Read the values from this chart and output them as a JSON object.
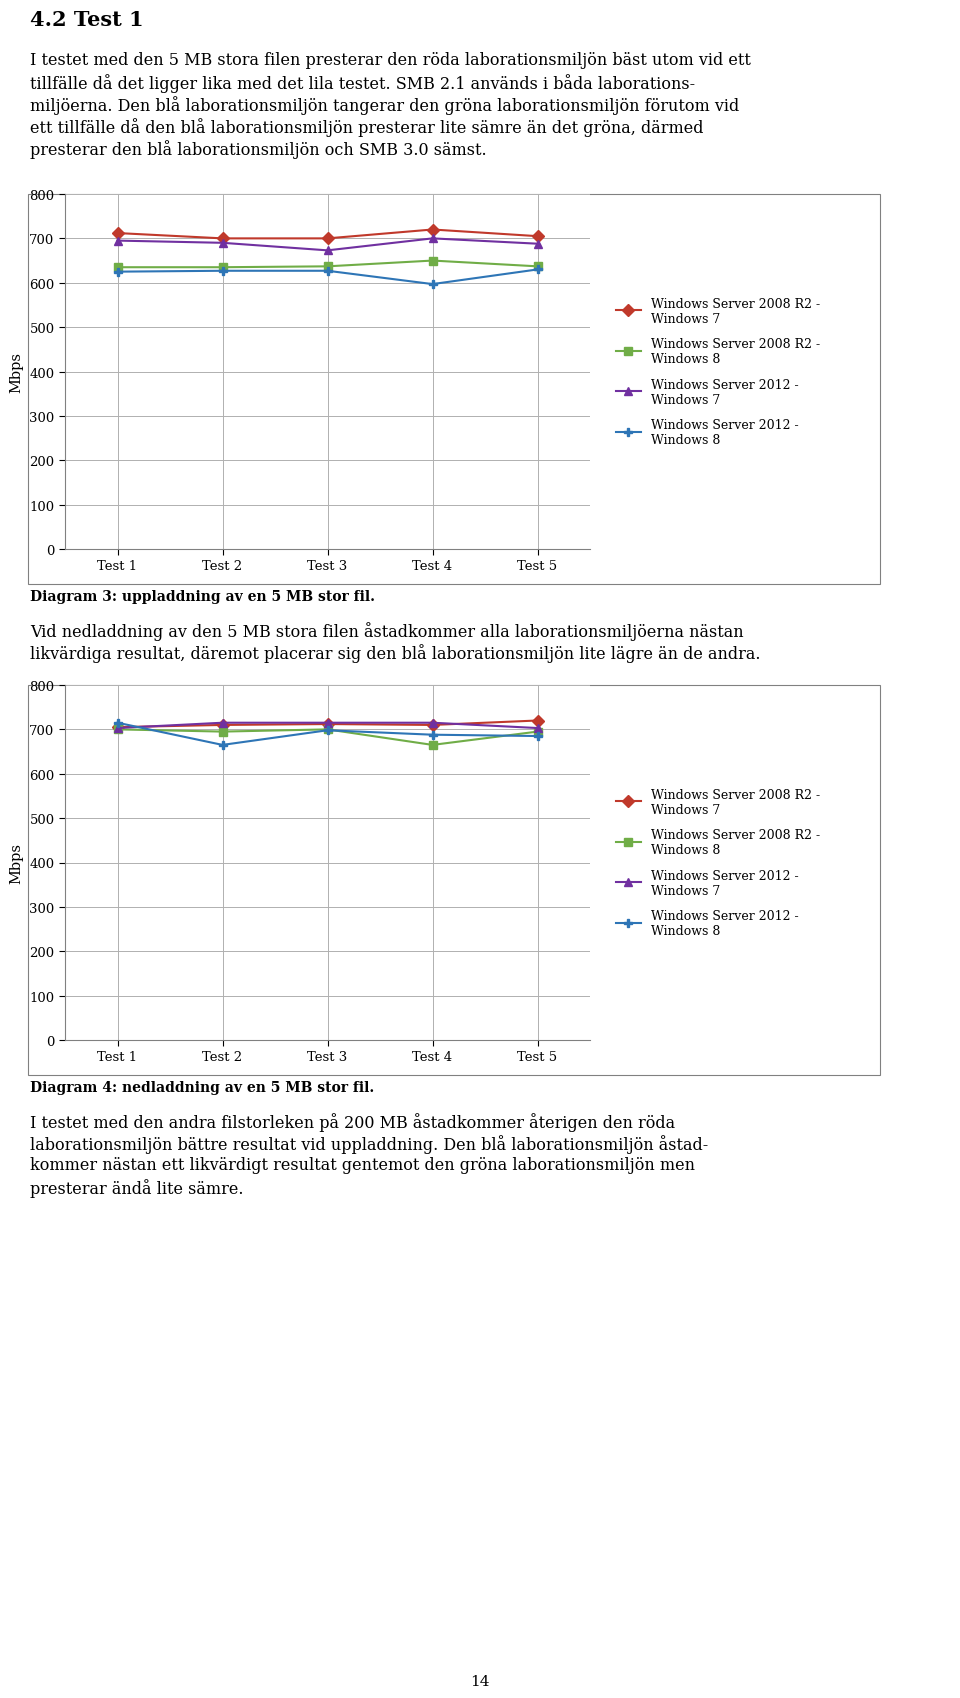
{
  "page_title": "4.2 Test 1",
  "intro_lines": [
    "I testet med den 5 MB stora filen presterar den röda laborationsmiljön bäst utom vid ett",
    "tillfälle då det ligger lika med det lila testet. SMB 2.1 används i båda laborations-",
    "miljöerna. Den blå laborationsmiljön tangerar den gröna laborationsmiljön förutom vid",
    "ett tillfälle då den blå laborationsmiljön presterar lite sämre än det gröna, därmed",
    "presterar den blå laborationsmiljön och SMB 3.0 sämst."
  ],
  "chart1_caption": "Diagram 3: uppladdning av en 5 MB stor fil.",
  "between_lines": [
    "Vid nedladdning av den 5 MB stora filen åstadkommer alla laborationsmiljöerna nästan",
    "likvärdiga resultat, däremot placerar sig den blå laborationsmiljön lite lägre än de andra."
  ],
  "chart2_caption": "Diagram 4: nedladdning av en 5 MB stor fil.",
  "ending_lines": [
    "I testet med den andra filstorleken på 200 MB åstadkommer återigen den röda",
    "laborationsmiljön bättre resultat vid uppladdning. Den blå laborationsmiljön åstad-",
    "kommer nästan ett likvärdigt resultat gentemot den gröna laborationsmiljön men",
    "presterar ändå lite sämre."
  ],
  "page_number": "14",
  "chart1": {
    "ylabel": "Mbps",
    "xticks": [
      "Test 1",
      "Test 2",
      "Test 3",
      "Test 4",
      "Test 5"
    ],
    "ylim": [
      0,
      800
    ],
    "yticks": [
      0,
      100,
      200,
      300,
      400,
      500,
      600,
      700,
      800
    ],
    "series": [
      {
        "label": "Windows Server 2008 R2 -\nWindows 7",
        "color": "#c0392b",
        "marker": "D",
        "values": [
          712,
          700,
          700,
          720,
          705
        ]
      },
      {
        "label": "Windows Server 2008 R2 -\nWindows 8",
        "color": "#70ad47",
        "marker": "s",
        "values": [
          635,
          635,
          637,
          650,
          637
        ]
      },
      {
        "label": "Windows Server 2012 -\nWindows 7",
        "color": "#7030a0",
        "marker": "^",
        "values": [
          695,
          690,
          673,
          700,
          688
        ]
      },
      {
        "label": "Windows Server 2012 -\nWindows 8",
        "color": "#2e75b6",
        "marker": "P",
        "values": [
          625,
          627,
          627,
          597,
          630
        ]
      }
    ]
  },
  "chart2": {
    "ylabel": "Mbps",
    "xticks": [
      "Test 1",
      "Test 2",
      "Test 3",
      "Test 4",
      "Test 5"
    ],
    "ylim": [
      0,
      800
    ],
    "yticks": [
      0,
      100,
      200,
      300,
      400,
      500,
      600,
      700,
      800
    ],
    "series": [
      {
        "label": "Windows Server 2008 R2 -\nWindows 7",
        "color": "#c0392b",
        "marker": "D",
        "values": [
          705,
          710,
          712,
          710,
          720
        ]
      },
      {
        "label": "Windows Server 2008 R2 -\nWindows 8",
        "color": "#70ad47",
        "marker": "s",
        "values": [
          700,
          695,
          700,
          665,
          695
        ]
      },
      {
        "label": "Windows Server 2012 -\nWindows 7",
        "color": "#7030a0",
        "marker": "^",
        "values": [
          703,
          715,
          715,
          715,
          703
        ]
      },
      {
        "label": "Windows Server 2012 -\nWindows 8",
        "color": "#2e75b6",
        "marker": "P",
        "values": [
          715,
          665,
          698,
          688,
          685
        ]
      }
    ]
  },
  "background_color": "#ffffff",
  "text_color": "#000000",
  "font_family": "DejaVu Serif",
  "title_fontsize": 15,
  "body_fontsize": 11.5,
  "caption_fontsize": 10,
  "page_num_fontsize": 11
}
